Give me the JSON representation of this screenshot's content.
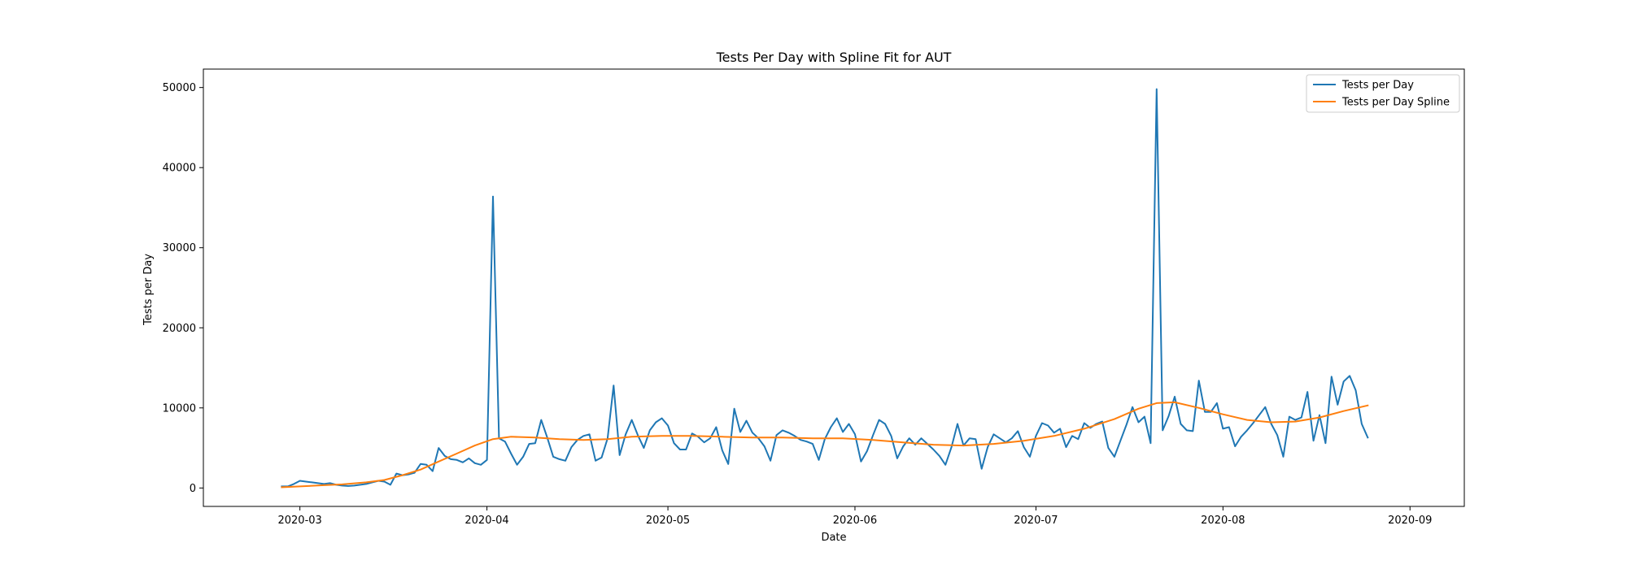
{
  "chart_data": {
    "type": "line",
    "title": "Tests Per Day with Spline Fit for AUT",
    "xlabel": "Date",
    "ylabel": "Tests per Day",
    "x_ticks": [
      "2020-03",
      "2020-04",
      "2020-05",
      "2020-06",
      "2020-07",
      "2020-08",
      "2020-09"
    ],
    "y_ticks": [
      0,
      10000,
      20000,
      30000,
      40000,
      50000
    ],
    "xlim": [
      "2020-02-14",
      "2020-09-10"
    ],
    "ylim": [
      -2300,
      52300
    ],
    "grid": false,
    "legend_position": "top-right",
    "series": [
      {
        "name": "Tests per Day",
        "color": "#1f77b4",
        "points": [
          [
            "2020-02-27",
            200
          ],
          [
            "2020-02-28",
            200
          ],
          [
            "2020-02-29",
            500
          ],
          [
            "2020-03-01",
            900
          ],
          [
            "2020-03-02",
            800
          ],
          [
            "2020-03-03",
            700
          ],
          [
            "2020-03-04",
            600
          ],
          [
            "2020-03-05",
            500
          ],
          [
            "2020-03-06",
            600
          ],
          [
            "2020-03-07",
            400
          ],
          [
            "2020-03-08",
            300
          ],
          [
            "2020-03-09",
            250
          ],
          [
            "2020-03-10",
            300
          ],
          [
            "2020-03-11",
            400
          ],
          [
            "2020-03-12",
            500
          ],
          [
            "2020-03-13",
            700
          ],
          [
            "2020-03-14",
            900
          ],
          [
            "2020-03-15",
            800
          ],
          [
            "2020-03-16",
            400
          ],
          [
            "2020-03-17",
            1800
          ],
          [
            "2020-03-18",
            1600
          ],
          [
            "2020-03-19",
            1700
          ],
          [
            "2020-03-20",
            1900
          ],
          [
            "2020-03-21",
            3000
          ],
          [
            "2020-03-22",
            2900
          ],
          [
            "2020-03-23",
            2100
          ],
          [
            "2020-03-24",
            5000
          ],
          [
            "2020-03-25",
            4000
          ],
          [
            "2020-03-26",
            3600
          ],
          [
            "2020-03-27",
            3500
          ],
          [
            "2020-03-28",
            3200
          ],
          [
            "2020-03-29",
            3700
          ],
          [
            "2020-03-30",
            3100
          ],
          [
            "2020-03-31",
            2900
          ],
          [
            "2020-04-01",
            3500
          ],
          [
            "2020-04-02",
            36400
          ],
          [
            "2020-04-03",
            6200
          ],
          [
            "2020-04-04",
            5800
          ],
          [
            "2020-04-05",
            4300
          ],
          [
            "2020-04-06",
            2900
          ],
          [
            "2020-04-07",
            3900
          ],
          [
            "2020-04-08",
            5500
          ],
          [
            "2020-04-09",
            5600
          ],
          [
            "2020-04-10",
            8500
          ],
          [
            "2020-04-11",
            6300
          ],
          [
            "2020-04-12",
            3900
          ],
          [
            "2020-04-13",
            3600
          ],
          [
            "2020-04-14",
            3400
          ],
          [
            "2020-04-15",
            5100
          ],
          [
            "2020-04-16",
            6000
          ],
          [
            "2020-04-17",
            6500
          ],
          [
            "2020-04-18",
            6700
          ],
          [
            "2020-04-19",
            3400
          ],
          [
            "2020-04-20",
            3800
          ],
          [
            "2020-04-21",
            6200
          ],
          [
            "2020-04-22",
            12800
          ],
          [
            "2020-04-23",
            4100
          ],
          [
            "2020-04-24",
            6700
          ],
          [
            "2020-04-25",
            8500
          ],
          [
            "2020-04-26",
            6600
          ],
          [
            "2020-04-27",
            5000
          ],
          [
            "2020-04-28",
            7200
          ],
          [
            "2020-04-29",
            8200
          ],
          [
            "2020-04-30",
            8700
          ],
          [
            "2020-05-01",
            7800
          ],
          [
            "2020-05-02",
            5600
          ],
          [
            "2020-05-03",
            4800
          ],
          [
            "2020-05-04",
            4800
          ],
          [
            "2020-05-05",
            6800
          ],
          [
            "2020-05-06",
            6400
          ],
          [
            "2020-05-07",
            5700
          ],
          [
            "2020-05-08",
            6200
          ],
          [
            "2020-05-09",
            7600
          ],
          [
            "2020-05-10",
            4700
          ],
          [
            "2020-05-11",
            3000
          ],
          [
            "2020-05-12",
            9900
          ],
          [
            "2020-05-13",
            7000
          ],
          [
            "2020-05-14",
            8400
          ],
          [
            "2020-05-15",
            6900
          ],
          [
            "2020-05-16",
            6200
          ],
          [
            "2020-05-17",
            5200
          ],
          [
            "2020-05-18",
            3400
          ],
          [
            "2020-05-19",
            6600
          ],
          [
            "2020-05-20",
            7200
          ],
          [
            "2020-05-21",
            6900
          ],
          [
            "2020-05-22",
            6500
          ],
          [
            "2020-05-23",
            6000
          ],
          [
            "2020-05-24",
            5800
          ],
          [
            "2020-05-25",
            5500
          ],
          [
            "2020-05-26",
            3500
          ],
          [
            "2020-05-27",
            6100
          ],
          [
            "2020-05-28",
            7600
          ],
          [
            "2020-05-29",
            8700
          ],
          [
            "2020-05-30",
            7000
          ],
          [
            "2020-05-31",
            8000
          ],
          [
            "2020-06-01",
            6700
          ],
          [
            "2020-06-02",
            3300
          ],
          [
            "2020-06-03",
            4600
          ],
          [
            "2020-06-04",
            6600
          ],
          [
            "2020-06-05",
            8500
          ],
          [
            "2020-06-06",
            8000
          ],
          [
            "2020-06-07",
            6500
          ],
          [
            "2020-06-08",
            3700
          ],
          [
            "2020-06-09",
            5200
          ],
          [
            "2020-06-10",
            6200
          ],
          [
            "2020-06-11",
            5400
          ],
          [
            "2020-06-12",
            6200
          ],
          [
            "2020-06-13",
            5500
          ],
          [
            "2020-06-14",
            4800
          ],
          [
            "2020-06-15",
            4000
          ],
          [
            "2020-06-16",
            2900
          ],
          [
            "2020-06-17",
            5100
          ],
          [
            "2020-06-18",
            8000
          ],
          [
            "2020-06-19",
            5300
          ],
          [
            "2020-06-20",
            6200
          ],
          [
            "2020-06-21",
            6100
          ],
          [
            "2020-06-22",
            2400
          ],
          [
            "2020-06-23",
            5100
          ],
          [
            "2020-06-24",
            6700
          ],
          [
            "2020-06-25",
            6200
          ],
          [
            "2020-06-26",
            5700
          ],
          [
            "2020-06-27",
            6200
          ],
          [
            "2020-06-28",
            7100
          ],
          [
            "2020-06-29",
            5100
          ],
          [
            "2020-06-30",
            3900
          ],
          [
            "2020-07-01",
            6500
          ],
          [
            "2020-07-02",
            8100
          ],
          [
            "2020-07-03",
            7800
          ],
          [
            "2020-07-04",
            6900
          ],
          [
            "2020-07-05",
            7400
          ],
          [
            "2020-07-06",
            5100
          ],
          [
            "2020-07-07",
            6500
          ],
          [
            "2020-07-08",
            6100
          ],
          [
            "2020-07-09",
            8100
          ],
          [
            "2020-07-10",
            7500
          ],
          [
            "2020-07-11",
            8000
          ],
          [
            "2020-07-12",
            8300
          ],
          [
            "2020-07-13",
            5000
          ],
          [
            "2020-07-14",
            3900
          ],
          [
            "2020-07-15",
            5900
          ],
          [
            "2020-07-16",
            7900
          ],
          [
            "2020-07-17",
            10100
          ],
          [
            "2020-07-18",
            8200
          ],
          [
            "2020-07-19",
            8900
          ],
          [
            "2020-07-20",
            5600
          ],
          [
            "2020-07-21",
            49800
          ],
          [
            "2020-07-22",
            7200
          ],
          [
            "2020-07-23",
            9000
          ],
          [
            "2020-07-24",
            11400
          ],
          [
            "2020-07-25",
            8000
          ],
          [
            "2020-07-26",
            7200
          ],
          [
            "2020-07-27",
            7100
          ],
          [
            "2020-07-28",
            13400
          ],
          [
            "2020-07-29",
            9500
          ],
          [
            "2020-07-30",
            9500
          ],
          [
            "2020-07-31",
            10600
          ],
          [
            "2020-08-01",
            7400
          ],
          [
            "2020-08-02",
            7600
          ],
          [
            "2020-08-03",
            5200
          ],
          [
            "2020-08-04",
            6400
          ],
          [
            "2020-08-05",
            7200
          ],
          [
            "2020-08-06",
            8100
          ],
          [
            "2020-08-07",
            9100
          ],
          [
            "2020-08-08",
            10100
          ],
          [
            "2020-08-09",
            8000
          ],
          [
            "2020-08-10",
            6600
          ],
          [
            "2020-08-11",
            3900
          ],
          [
            "2020-08-12",
            8900
          ],
          [
            "2020-08-13",
            8500
          ],
          [
            "2020-08-14",
            8800
          ],
          [
            "2020-08-15",
            12000
          ],
          [
            "2020-08-16",
            5900
          ],
          [
            "2020-08-17",
            9100
          ],
          [
            "2020-08-18",
            5600
          ],
          [
            "2020-08-19",
            13900
          ],
          [
            "2020-08-20",
            10400
          ],
          [
            "2020-08-21",
            13300
          ],
          [
            "2020-08-22",
            14000
          ],
          [
            "2020-08-23",
            12200
          ],
          [
            "2020-08-24",
            8000
          ],
          [
            "2020-08-25",
            6300
          ]
        ]
      },
      {
        "name": "Tests per Day Spline",
        "color": "#ff7f0e",
        "points": [
          [
            "2020-02-27",
            100
          ],
          [
            "2020-03-01",
            200
          ],
          [
            "2020-03-05",
            350
          ],
          [
            "2020-03-08",
            450
          ],
          [
            "2020-03-12",
            700
          ],
          [
            "2020-03-15",
            1000
          ],
          [
            "2020-03-18",
            1600
          ],
          [
            "2020-03-21",
            2300
          ],
          [
            "2020-03-24",
            3300
          ],
          [
            "2020-03-27",
            4300
          ],
          [
            "2020-03-30",
            5300
          ],
          [
            "2020-04-02",
            6100
          ],
          [
            "2020-04-05",
            6400
          ],
          [
            "2020-04-09",
            6300
          ],
          [
            "2020-04-13",
            6100
          ],
          [
            "2020-04-17",
            6000
          ],
          [
            "2020-04-21",
            6100
          ],
          [
            "2020-04-25",
            6400
          ],
          [
            "2020-04-30",
            6500
          ],
          [
            "2020-05-05",
            6500
          ],
          [
            "2020-05-10",
            6400
          ],
          [
            "2020-05-15",
            6300
          ],
          [
            "2020-05-20",
            6300
          ],
          [
            "2020-05-25",
            6200
          ],
          [
            "2020-05-30",
            6200
          ],
          [
            "2020-06-04",
            6000
          ],
          [
            "2020-06-09",
            5700
          ],
          [
            "2020-06-14",
            5400
          ],
          [
            "2020-06-19",
            5300
          ],
          [
            "2020-06-24",
            5500
          ],
          [
            "2020-06-29",
            5900
          ],
          [
            "2020-07-04",
            6500
          ],
          [
            "2020-07-09",
            7400
          ],
          [
            "2020-07-14",
            8600
          ],
          [
            "2020-07-18",
            9900
          ],
          [
            "2020-07-21",
            10600
          ],
          [
            "2020-07-24",
            10700
          ],
          [
            "2020-07-28",
            10000
          ],
          [
            "2020-08-01",
            9200
          ],
          [
            "2020-08-05",
            8500
          ],
          [
            "2020-08-09",
            8200
          ],
          [
            "2020-08-13",
            8300
          ],
          [
            "2020-08-17",
            8800
          ],
          [
            "2020-08-21",
            9600
          ],
          [
            "2020-08-25",
            10300
          ]
        ]
      }
    ]
  }
}
